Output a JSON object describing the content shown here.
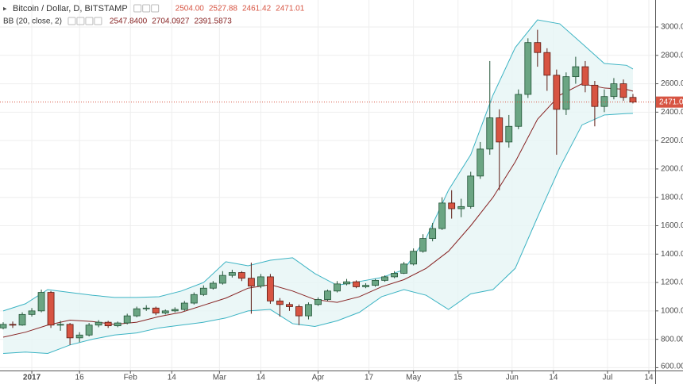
{
  "chart_data": {
    "type": "candlestick",
    "title": "Bitcoin / Dollar, D, BITSTAMP",
    "ohlc_labels": [
      "2504.00",
      "2527.88",
      "2461.42",
      "2471.01"
    ],
    "indicator": "BB (20, close, 2)",
    "indicator_labels": [
      "2547.8400",
      "2704.0927",
      "2391.5873"
    ],
    "x": [
      "2016-12-23",
      "2016-12-26",
      "2016-12-29",
      "2017-01-01",
      "2017-01-04",
      "2017-01-07",
      "2017-01-10",
      "2017-01-13",
      "2017-01-16",
      "2017-01-19",
      "2017-01-22",
      "2017-01-25",
      "2017-01-28",
      "2017-01-31",
      "2017-02-03",
      "2017-02-06",
      "2017-02-09",
      "2017-02-12",
      "2017-02-15",
      "2017-02-18",
      "2017-02-21",
      "2017-02-24",
      "2017-02-27",
      "2017-03-02",
      "2017-03-05",
      "2017-03-08",
      "2017-03-11",
      "2017-03-14",
      "2017-03-17",
      "2017-03-20",
      "2017-03-23",
      "2017-03-26",
      "2017-03-29",
      "2017-04-01",
      "2017-04-04",
      "2017-04-07",
      "2017-04-10",
      "2017-04-13",
      "2017-04-16",
      "2017-04-19",
      "2017-04-22",
      "2017-04-25",
      "2017-04-28",
      "2017-05-01",
      "2017-05-04",
      "2017-05-07",
      "2017-05-10",
      "2017-05-13",
      "2017-05-16",
      "2017-05-19",
      "2017-05-22",
      "2017-05-25",
      "2017-05-28",
      "2017-05-31",
      "2017-06-03",
      "2017-06-06",
      "2017-06-09",
      "2017-06-12",
      "2017-06-15",
      "2017-06-18",
      "2017-06-21",
      "2017-06-24",
      "2017-06-27",
      "2017-06-30",
      "2017-07-03",
      "2017-07-06",
      "2017-07-09"
    ],
    "open": [
      880,
      905,
      900,
      975,
      1000,
      1130,
      900,
      905,
      810,
      830,
      900,
      920,
      895,
      915,
      965,
      1015,
      1020,
      985,
      1000,
      1010,
      1055,
      1115,
      1160,
      1195,
      1250,
      1270,
      1230,
      1175,
      1240,
      1070,
      1045,
      1030,
      965,
      1045,
      1080,
      1140,
      1190,
      1205,
      1170,
      1180,
      1215,
      1240,
      1265,
      1330,
      1420,
      1510,
      1580,
      1760,
      1720,
      1735,
      1950,
      2140,
      2360,
      2190,
      2300,
      2525,
      2890,
      2820,
      2660,
      2420,
      2650,
      2720,
      2590,
      2440,
      2510,
      2600,
      2504
    ],
    "high": [
      920,
      925,
      990,
      1020,
      1150,
      1140,
      930,
      915,
      850,
      915,
      935,
      930,
      925,
      980,
      1030,
      1040,
      1030,
      1010,
      1025,
      1070,
      1130,
      1180,
      1210,
      1280,
      1290,
      1280,
      1340,
      1260,
      1260,
      1090,
      1060,
      1045,
      1060,
      1095,
      1150,
      1210,
      1225,
      1215,
      1195,
      1225,
      1250,
      1280,
      1345,
      1440,
      1540,
      1620,
      1800,
      1850,
      1790,
      1980,
      2190,
      2760,
      2420,
      2380,
      2560,
      2920,
      2980,
      2850,
      2700,
      2680,
      2790,
      2760,
      2620,
      2560,
      2640,
      2630,
      2527.88
    ],
    "low": [
      870,
      880,
      895,
      960,
      990,
      880,
      860,
      760,
      780,
      820,
      885,
      880,
      885,
      905,
      955,
      1000,
      970,
      975,
      990,
      1000,
      1045,
      1105,
      1150,
      1185,
      1235,
      1210,
      980,
      1160,
      1050,
      960,
      1000,
      900,
      940,
      1035,
      1070,
      1130,
      1180,
      1160,
      1160,
      1170,
      1205,
      1230,
      1260,
      1320,
      1410,
      1490,
      1570,
      1650,
      1660,
      1720,
      1930,
      2100,
      1850,
      2150,
      2280,
      2500,
      2720,
      2550,
      2100,
      2380,
      2600,
      2540,
      2300,
      2400,
      2490,
      2480,
      2461.42
    ],
    "close": [
      905,
      900,
      975,
      1000,
      1130,
      900,
      905,
      810,
      830,
      900,
      920,
      895,
      915,
      965,
      1015,
      1020,
      985,
      1000,
      1010,
      1055,
      1115,
      1160,
      1195,
      1250,
      1270,
      1230,
      1175,
      1240,
      1070,
      1045,
      1030,
      965,
      1045,
      1080,
      1140,
      1190,
      1205,
      1170,
      1180,
      1215,
      1240,
      1265,
      1330,
      1420,
      1510,
      1580,
      1760,
      1720,
      1735,
      1950,
      2140,
      2360,
      2190,
      2300,
      2525,
      2890,
      2820,
      2660,
      2420,
      2650,
      2720,
      2590,
      2440,
      2510,
      2600,
      2504,
      2471.01
    ],
    "up_color": "#6ba583",
    "down_color": "#d75442",
    "bands": {
      "x": [
        "2016-12-23",
        "2016-12-30",
        "2017-01-06",
        "2017-01-13",
        "2017-01-20",
        "2017-01-27",
        "2017-02-03",
        "2017-02-10",
        "2017-02-17",
        "2017-02-24",
        "2017-03-03",
        "2017-03-10",
        "2017-03-17",
        "2017-03-24",
        "2017-03-31",
        "2017-04-07",
        "2017-04-14",
        "2017-04-21",
        "2017-04-28",
        "2017-05-05",
        "2017-05-12",
        "2017-05-19",
        "2017-05-26",
        "2017-06-02",
        "2017-06-09",
        "2017-06-16",
        "2017-06-23",
        "2017-06-30",
        "2017-07-07",
        "2017-07-09"
      ],
      "upper": [
        1000,
        1050,
        1150,
        1130,
        1110,
        1095,
        1095,
        1100,
        1140,
        1200,
        1346,
        1318,
        1357,
        1374,
        1263,
        1180,
        1207,
        1235,
        1290,
        1514,
        1850,
        2100,
        2520,
        2855,
        3050,
        3022,
        2883,
        2743,
        2730,
        2704.0927
      ],
      "middle": [
        815,
        850,
        900,
        935,
        925,
        905,
        920,
        960,
        990,
        1040,
        1090,
        1160,
        1185,
        1140,
        1080,
        1060,
        1100,
        1170,
        1220,
        1300,
        1420,
        1600,
        1800,
        2050,
        2350,
        2520,
        2600,
        2570,
        2560,
        2547.84
      ],
      "lower": [
        700,
        710,
        700,
        760,
        800,
        830,
        845,
        880,
        900,
        920,
        950,
        1000,
        1010,
        910,
        890,
        930,
        990,
        1100,
        1150,
        1110,
        1010,
        1120,
        1150,
        1300,
        1660,
        2010,
        2310,
        2380,
        2390,
        2391.5873
      ],
      "color": "#3bb3c3",
      "fill": "#e6f5f5",
      "middle_color": "#872323"
    },
    "xlim": [
      "2016-12-22",
      "2017-07-16"
    ],
    "ylim": [
      580,
      3190
    ],
    "xticks": [
      {
        "value": "2017-01-01",
        "label": "2017"
      },
      {
        "value": "2017-01-16",
        "label": "16"
      },
      {
        "value": "2017-02-01",
        "label": "Feb"
      },
      {
        "value": "2017-02-14",
        "label": "14"
      },
      {
        "value": "2017-03-01",
        "label": "Mar"
      },
      {
        "value": "2017-03-14",
        "label": "14"
      },
      {
        "value": "2017-04-01",
        "label": "Apr"
      },
      {
        "value": "2017-04-17",
        "label": "17"
      },
      {
        "value": "2017-05-01",
        "label": "May"
      },
      {
        "value": "2017-05-15",
        "label": "15"
      },
      {
        "value": "2017-06-01",
        "label": "Jun"
      },
      {
        "value": "2017-06-14",
        "label": "14"
      },
      {
        "value": "2017-07-01",
        "label": "Jul"
      },
      {
        "value": "2017-07-14",
        "label": "14"
      }
    ],
    "yticks": [
      {
        "value": 600,
        "label": "600.00"
      },
      {
        "value": 800,
        "label": "800.00"
      },
      {
        "value": 1000,
        "label": "1000.00"
      },
      {
        "value": 1200,
        "label": "1200.00"
      },
      {
        "value": 1400,
        "label": "1400.00"
      },
      {
        "value": 1600,
        "label": "1600.00"
      },
      {
        "value": 1800,
        "label": "1800.00"
      },
      {
        "value": 2000,
        "label": "2000.00"
      },
      {
        "value": 2200,
        "label": "2200.00"
      },
      {
        "value": 2400,
        "label": "2400.00"
      },
      {
        "value": 2600,
        "label": "2600.00"
      },
      {
        "value": 2800,
        "label": "2800.00"
      },
      {
        "value": 3000,
        "label": "3000.00"
      }
    ],
    "grid": true
  }
}
